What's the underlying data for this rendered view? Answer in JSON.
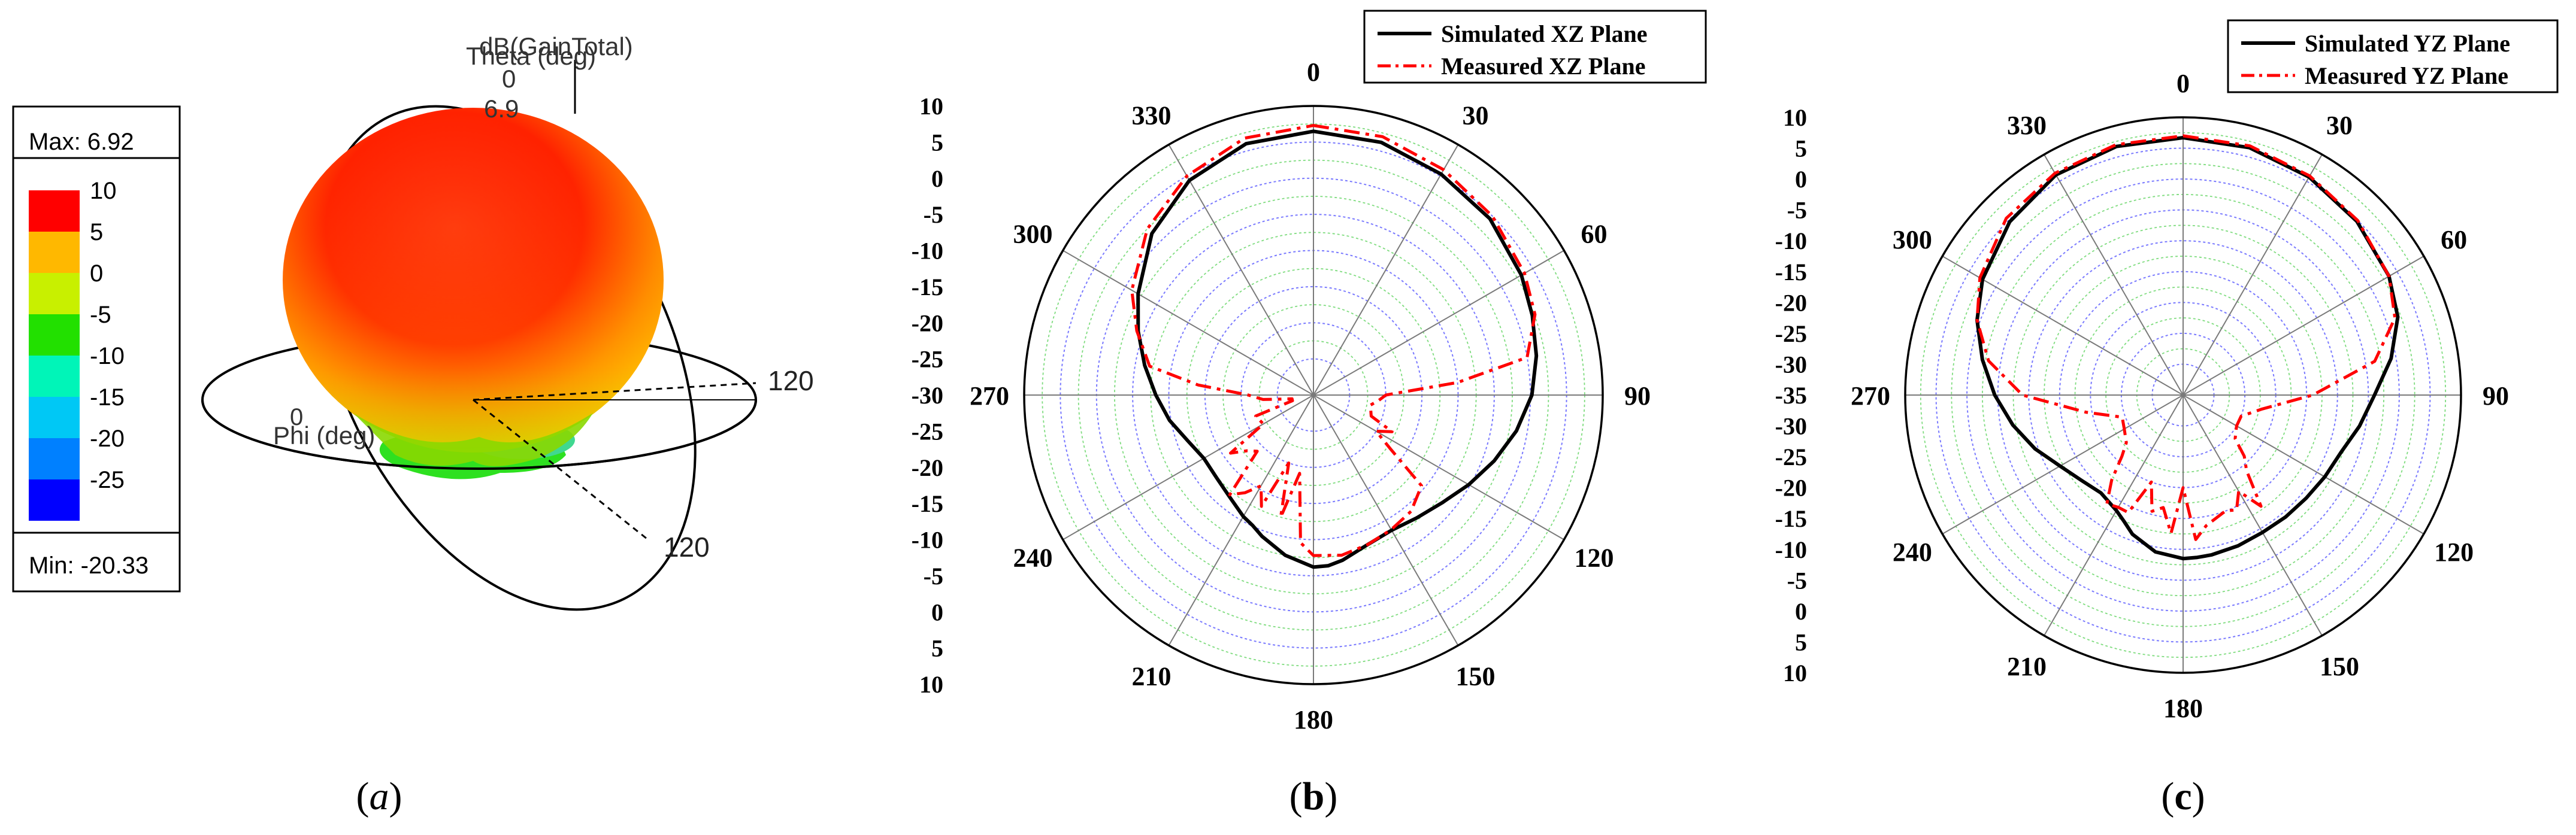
{
  "panels": {
    "a": {
      "caption": "a",
      "title": "dB(GainTotal)",
      "theta_label": "Theta (deg)",
      "phi_label": "Phi (deg)",
      "theta_zero": "0",
      "phi_zero": "0",
      "peak_value": "6.9",
      "ring_label_1": "120",
      "ring_label_2": "120",
      "legend": {
        "max_label": "Max: 6.92",
        "min_label": "Min: -20.33",
        "entries": [
          {
            "label": "10",
            "color": "#ff0000"
          },
          {
            "label": "5",
            "color": "#ffb800"
          },
          {
            "label": "0",
            "color": "#c8f000"
          },
          {
            "label": "-5",
            "color": "#22e000"
          },
          {
            "label": "-10",
            "color": "#00f5b8"
          },
          {
            "label": "-15",
            "color": "#00c8f5"
          },
          {
            "label": "-20",
            "color": "#0080ff"
          },
          {
            "label": "-25",
            "color": "#0000ff"
          }
        ]
      }
    },
    "b": {
      "caption": "b"
    },
    "c": {
      "caption": "c"
    }
  },
  "chart_data": [
    {
      "type": "polar",
      "panel": "b",
      "radial_ticks": [
        "10",
        "5",
        "0",
        "-5",
        "-10",
        "-15",
        "-20",
        "-25",
        "-30",
        "-25",
        "-20",
        "-15",
        "-10",
        "-5",
        "0",
        "5",
        "10"
      ],
      "r_range_db": [
        -30,
        10
      ],
      "angle_ticks": [
        "0",
        "30",
        "60",
        "90",
        "120",
        "150",
        "180",
        "210",
        "240",
        "270",
        "300",
        "330"
      ],
      "legend": [
        "Simulated XZ Plane",
        "Measured XZ Plane"
      ],
      "series": [
        {
          "name": "Simulated XZ Plane",
          "style": "solid",
          "color": "#000000",
          "angles": [
            0,
            15,
            30,
            45,
            60,
            70,
            80,
            90,
            100,
            110,
            120,
            130,
            140,
            150,
            160,
            170,
            175,
            180,
            190,
            200,
            205,
            210,
            220,
            230,
            240,
            250,
            260,
            270,
            280,
            290,
            300,
            315,
            330,
            345
          ],
          "values": [
            6.5,
            6.2,
            5.3,
            4.5,
            3.2,
            2.2,
            1.3,
            0.2,
            -1.5,
            -3.4,
            -5.2,
            -6.8,
            -7.8,
            -8.4,
            -8.0,
            -6.8,
            -6.3,
            -6.2,
            -7.5,
            -9.2,
            -10.1,
            -10.6,
            -11.8,
            -12.4,
            -12.5,
            -11.5,
            -9.8,
            -8.2,
            -6.3,
            -4.2,
            -2.0,
            1.6,
            4.3,
            6.0
          ]
        },
        {
          "name": "Measured XZ Plane",
          "style": "dashdot",
          "color": "#ff0000",
          "angles": [
            0,
            15,
            30,
            45,
            60,
            70,
            80,
            85,
            90,
            95,
            100,
            110,
            115,
            120,
            125,
            130,
            140,
            150,
            160,
            170,
            180,
            185,
            190,
            195,
            200,
            205,
            210,
            215,
            220,
            225,
            230,
            235,
            240,
            250,
            255,
            260,
            265,
            270,
            275,
            280,
            290,
            300,
            315,
            330,
            345
          ],
          "values": [
            7.3,
            7.0,
            6.0,
            5.0,
            3.7,
            2.6,
            0.0,
            -10.0,
            -20.0,
            -21.0,
            -22.0,
            -21.5,
            -18.0,
            -20.0,
            -17.0,
            -10.5,
            -9.0,
            -8.5,
            -8.0,
            -7.5,
            -7.8,
            -9.5,
            -19.0,
            -12.5,
            -20.0,
            -13.0,
            -15.5,
            -13.5,
            -12.0,
            -19.0,
            -18.0,
            -16.0,
            -22.0,
            -21.5,
            -27.0,
            -27.0,
            -23.0,
            -21.0,
            -14.0,
            -7.0,
            -4.0,
            -1.0,
            2.5,
            5.0,
            6.8
          ]
        }
      ]
    },
    {
      "type": "polar",
      "panel": "c",
      "radial_ticks": [
        "10",
        "5",
        "0",
        "-5",
        "-10",
        "-15",
        "-20",
        "-25",
        "-30",
        "-35",
        "-30",
        "-25",
        "-20",
        "-15",
        "-10",
        "-5",
        "0",
        "5",
        "10"
      ],
      "r_range_db": [
        -35,
        10
      ],
      "angle_ticks": [
        "0",
        "30",
        "60",
        "90",
        "120",
        "150",
        "180",
        "210",
        "240",
        "270",
        "300",
        "330"
      ],
      "legend": [
        "Simulated YZ Plane",
        "Measured YZ Plane"
      ],
      "series": [
        {
          "name": "Simulated YZ Plane",
          "style": "solid",
          "color": "#000000",
          "angles": [
            0,
            15,
            30,
            45,
            60,
            70,
            80,
            90,
            100,
            110,
            120,
            130,
            140,
            150,
            160,
            170,
            175,
            180,
            190,
            200,
            205,
            210,
            220,
            230,
            240,
            250,
            260,
            270,
            280,
            290,
            300,
            315,
            330,
            345
          ],
          "values": [
            6.7,
            6.5,
            5.8,
            4.8,
            3.5,
            2.0,
            -0.8,
            -4.0,
            -6.0,
            -7.8,
            -8.5,
            -9.0,
            -9.2,
            -9.3,
            -9.0,
            -8.7,
            -8.6,
            -8.5,
            -9.2,
            -11.0,
            -12.4,
            -13.4,
            -14.3,
            -13.5,
            -12.0,
            -9.5,
            -7.0,
            -4.5,
            -2.0,
            0.5,
            2.5,
            4.7,
            6.2,
            6.7
          ]
        },
        {
          "name": "Measured YZ Plane",
          "style": "dashdot",
          "color": "#ff0000",
          "angles": [
            0,
            15,
            30,
            45,
            60,
            70,
            80,
            90,
            100,
            110,
            120,
            130,
            135,
            140,
            145,
            150,
            155,
            160,
            170,
            175,
            180,
            185,
            190,
            195,
            200,
            205,
            210,
            215,
            220,
            225,
            230,
            240,
            250,
            260,
            270,
            280,
            290,
            300,
            315,
            330,
            345
          ],
          "values": [
            7.0,
            6.8,
            6.0,
            5.0,
            3.5,
            1.5,
            -3.5,
            -14.0,
            -22.0,
            -25.0,
            -25.0,
            -24.0,
            -21.0,
            -19.0,
            -13.0,
            -17.0,
            -14.5,
            -15.0,
            -13.5,
            -11.5,
            -20.0,
            -12.5,
            -16.5,
            -15.5,
            -20.0,
            -14.0,
            -14.0,
            -13.5,
            -17.0,
            -21.0,
            -23.0,
            -24.0,
            -24.5,
            -19.0,
            -9.0,
            -3.0,
            0.5,
            3.0,
            5.5,
            6.5,
            7.0
          ]
        }
      ]
    }
  ]
}
